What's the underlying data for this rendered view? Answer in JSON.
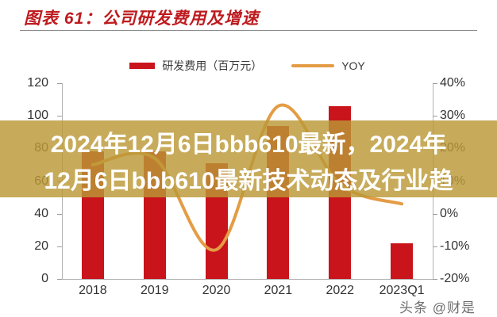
{
  "title": "图表 61：公司研发费用及增速",
  "legend": {
    "bar_label": "研发费用（百万元）",
    "line_label": "YOY"
  },
  "overlay": {
    "line1": "2024年12月6日bbb610最新，2024年",
    "line2": "12月6日bbb610最新技术动态及行业趋"
  },
  "watermark": "头条 @财是",
  "colors": {
    "title_red": "#be1b1f",
    "bar_red": "#c9141b",
    "line_orange": "#e49c44",
    "overlay_tan": "rgba(187,152,55,0.82)"
  },
  "chart_data": {
    "type": "bar",
    "title": "公司研发费用及增速",
    "categories": [
      "2018",
      "2019",
      "2020",
      "2021",
      "2022",
      "2023Q1"
    ],
    "series": [
      {
        "name": "研发费用（百万元）",
        "type": "bar",
        "axis": "left",
        "values": [
          78,
          78,
          71,
          94,
          106,
          22
        ]
      },
      {
        "name": "YOY",
        "type": "line",
        "axis": "right",
        "unit": "%",
        "values": [
          15,
          17,
          -11,
          33,
          9,
          3
        ]
      }
    ],
    "left_axis": {
      "label": "",
      "ticks": [
        120,
        100,
        80,
        60,
        40,
        20,
        0
      ],
      "lim": [
        0,
        120
      ]
    },
    "right_axis": {
      "label": "",
      "ticks": [
        "40%",
        "30%",
        "20%",
        "10%",
        "0%",
        "-10%",
        "-20%"
      ],
      "lim_percent": [
        -20,
        40
      ]
    },
    "x_labels": [
      "2018",
      "2019",
      "2020",
      "2021",
      "2022",
      "2023Q1"
    ],
    "grid": false,
    "legend_position": "top"
  }
}
